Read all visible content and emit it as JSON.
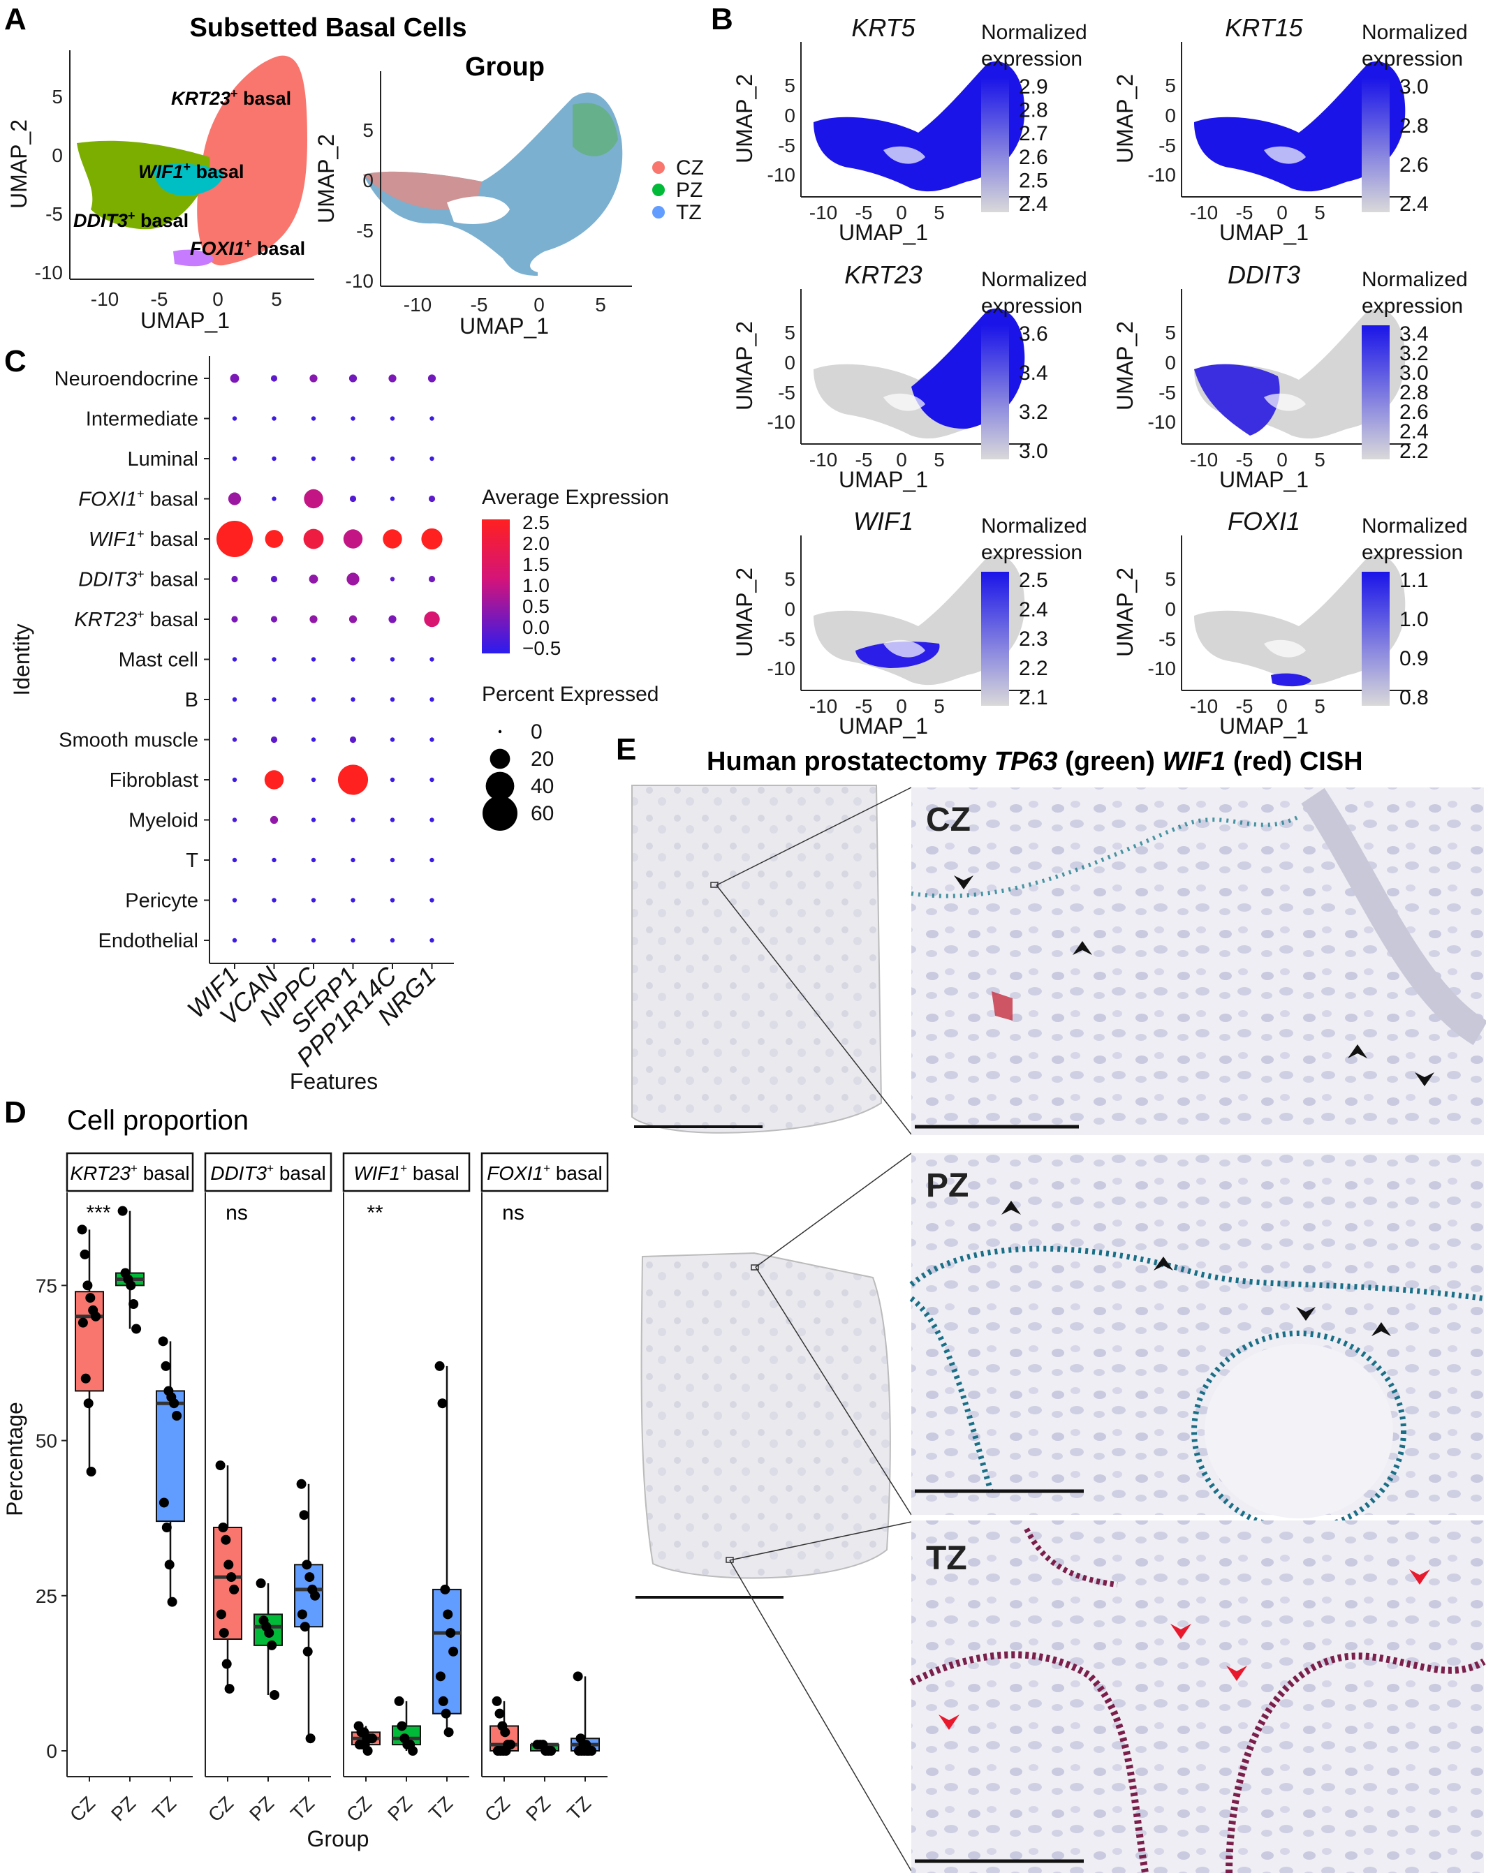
{
  "panels": {
    "A": {
      "letter": "A",
      "title": "Subsetted Basal Cells",
      "group_title": "Group",
      "xlabel": "UMAP_1",
      "ylabel": "UMAP_2",
      "xticks": [
        "-10",
        "-5",
        "0",
        "5"
      ],
      "yticks": [
        "5",
        "0",
        "-5",
        "-10"
      ],
      "cluster_labels": [
        {
          "gene": "KRT23",
          "sup": "+",
          "rest": " basal",
          "color": "#f8766d"
        },
        {
          "gene": "WIF1",
          "sup": "+",
          "rest": " basal",
          "color": "#00bfc4"
        },
        {
          "gene": "DDIT3",
          "sup": "+",
          "rest": " basal",
          "color": "#7cae00"
        },
        {
          "gene": "FOXI1",
          "sup": "+",
          "rest": " basal",
          "color": "#c77cff"
        }
      ],
      "group_legend": [
        {
          "label": "CZ",
          "color": "#f8766d"
        },
        {
          "label": "PZ",
          "color": "#00ba38"
        },
        {
          "label": "TZ",
          "color": "#619cff"
        }
      ]
    },
    "B": {
      "letter": "B",
      "legend_title_1": "Normalized",
      "legend_title_2": "expression",
      "xlabel": "UMAP_1",
      "ylabel": "UMAP_2",
      "xticks": [
        "-10",
        "-5",
        "0",
        "5"
      ],
      "yticks": [
        "5",
        "0",
        "-5",
        "-10"
      ],
      "plots": [
        {
          "gene": "KRT5",
          "ticks": [
            "2.9",
            "2.8",
            "2.7",
            "2.6",
            "2.5",
            "2.4"
          ]
        },
        {
          "gene": "KRT15",
          "ticks": [
            "3.0",
            "2.8",
            "2.6",
            "2.4"
          ]
        },
        {
          "gene": "KRT23",
          "ticks": [
            "3.6",
            "3.4",
            "3.2",
            "3.0"
          ]
        },
        {
          "gene": "DDIT3",
          "ticks": [
            "3.4",
            "3.2",
            "3.0",
            "2.8",
            "2.6",
            "2.4",
            "2.2"
          ]
        },
        {
          "gene": "WIF1",
          "ticks": [
            "2.5",
            "2.4",
            "2.3",
            "2.2",
            "2.1"
          ]
        },
        {
          "gene": "FOXI1",
          "ticks": [
            "1.1",
            "1.0",
            "0.9",
            "0.8"
          ]
        }
      ]
    },
    "C": {
      "letter": "C",
      "xlabel": "Features",
      "ylabel": "Identity",
      "identities": [
        {
          "plain": "Neuroendocrine"
        },
        {
          "plain": "Intermediate"
        },
        {
          "plain": "Luminal"
        },
        {
          "gene": "FOXI1",
          "sup": "+",
          "rest": " basal"
        },
        {
          "gene": "WIF1",
          "sup": "+",
          "rest": " basal"
        },
        {
          "gene": "DDIT3",
          "sup": "+",
          "rest": " basal"
        },
        {
          "gene": "KRT23",
          "sup": "+",
          "rest": " basal"
        },
        {
          "plain": "Mast cell"
        },
        {
          "plain": "B"
        },
        {
          "plain": "Smooth muscle"
        },
        {
          "plain": "Fibroblast"
        },
        {
          "plain": "Myeloid"
        },
        {
          "plain": "T"
        },
        {
          "plain": "Pericyte"
        },
        {
          "plain": "Endothelial"
        }
      ],
      "features": [
        "WIF1",
        "VCAN",
        "NPPC",
        "SFRP1",
        "PPP1R14C",
        "NRG1"
      ],
      "avg_legend_title": "Average Expression",
      "avg_ticks": [
        "2.5",
        "2.0",
        "1.5",
        "1.0",
        "0.5",
        "0.0",
        "−0.5"
      ],
      "pct_legend_title": "Percent Expressed",
      "pct_ticks": [
        "0",
        "20",
        "40",
        "60"
      ]
    },
    "D": {
      "letter": "D",
      "title": "Cell proportion",
      "xlabel": "Group",
      "ylabel": "Percentage",
      "yticks": [
        "0",
        "25",
        "50",
        "75"
      ],
      "facets": [
        {
          "gene": "KRT23",
          "sup": "+",
          "rest": " basal",
          "sig": "***"
        },
        {
          "gene": "DDIT3",
          "sup": "+",
          "rest": " basal",
          "sig": "ns"
        },
        {
          "gene": "WIF1",
          "sup": "+",
          "rest": " basal",
          "sig": "**"
        },
        {
          "gene": "FOXI1",
          "sup": "+",
          "rest": " basal",
          "sig": "ns"
        }
      ],
      "groups": [
        "CZ",
        "PZ",
        "TZ"
      ],
      "group_colors": [
        "#f8766d",
        "#00ba38",
        "#619cff"
      ]
    },
    "E": {
      "letter": "E",
      "title_a": "Human prostatectomy ",
      "title_g1": "TP63",
      "title_b": " (green) ",
      "title_g2": "WIF1",
      "title_c": " (red) CISH",
      "zones": [
        "CZ",
        "PZ",
        "TZ"
      ]
    }
  },
  "chart_data": [
    {
      "type": "dotplot",
      "panel": "C",
      "rows": [
        "Neuroendocrine",
        "Intermediate",
        "Luminal",
        "FOXI1+ basal",
        "WIF1+ basal",
        "DDIT3+ basal",
        "KRT23+ basal",
        "Mast cell",
        "B",
        "Smooth muscle",
        "Fibroblast",
        "Myeloid",
        "T",
        "Pericyte",
        "Endothelial"
      ],
      "columns": [
        "WIF1",
        "VCAN",
        "NPPC",
        "SFRP1",
        "PPP1R14C",
        "NRG1"
      ],
      "percent_expressed": [
        [
          4,
          2,
          3,
          3,
          3,
          3
        ],
        [
          1,
          1,
          1,
          1,
          1,
          1
        ],
        [
          1,
          1,
          1,
          1,
          1,
          1
        ],
        [
          8,
          1,
          18,
          2,
          1,
          2
        ],
        [
          65,
          16,
          20,
          18,
          18,
          22
        ],
        [
          2,
          2,
          4,
          8,
          1,
          2
        ],
        [
          2,
          2,
          3,
          3,
          3,
          12
        ],
        [
          1,
          1,
          1,
          1,
          1,
          1
        ],
        [
          1,
          1,
          1,
          1,
          1,
          1
        ],
        [
          1,
          2,
          1,
          2,
          1,
          1
        ],
        [
          1,
          18,
          1,
          45,
          1,
          1
        ],
        [
          1,
          3,
          1,
          1,
          1,
          1
        ],
        [
          1,
          1,
          1,
          1,
          1,
          1
        ],
        [
          1,
          1,
          1,
          1,
          1,
          1
        ],
        [
          1,
          1,
          1,
          1,
          1,
          1
        ]
      ],
      "average_expression": [
        [
          0.3,
          0.0,
          0.4,
          0.2,
          0.3,
          0.2
        ],
        [
          -0.3,
          -0.3,
          -0.3,
          -0.3,
          -0.3,
          -0.3
        ],
        [
          -0.3,
          -0.3,
          -0.3,
          -0.3,
          -0.3,
          -0.3
        ],
        [
          0.6,
          -0.3,
          1.0,
          -0.1,
          -0.3,
          0.0
        ],
        [
          2.5,
          2.5,
          2.0,
          1.0,
          2.5,
          2.5
        ],
        [
          0.2,
          0.0,
          0.5,
          0.6,
          0.0,
          0.2
        ],
        [
          0.3,
          0.3,
          0.5,
          0.5,
          0.3,
          1.3
        ],
        [
          -0.3,
          -0.3,
          -0.3,
          -0.3,
          -0.3,
          -0.3
        ],
        [
          -0.3,
          -0.3,
          -0.3,
          -0.3,
          -0.3,
          -0.3
        ],
        [
          -0.2,
          0.0,
          -0.3,
          0.0,
          -0.3,
          -0.3
        ],
        [
          -0.3,
          2.5,
          -0.3,
          2.5,
          -0.3,
          -0.3
        ],
        [
          -0.2,
          0.5,
          -0.3,
          -0.3,
          -0.3,
          -0.3
        ],
        [
          -0.3,
          -0.3,
          -0.3,
          -0.3,
          -0.3,
          -0.3
        ],
        [
          -0.3,
          -0.3,
          -0.3,
          -0.3,
          -0.3,
          -0.3
        ],
        [
          -0.3,
          -0.3,
          -0.3,
          -0.3,
          -0.3,
          -0.3
        ]
      ],
      "avg_range": [
        -0.5,
        2.5
      ],
      "pct_scale_max": 65
    },
    {
      "type": "box",
      "panel": "D",
      "ylim": [
        0,
        90
      ],
      "facets": [
        {
          "name": "KRT23+ basal",
          "boxes": [
            {
              "group": "CZ",
              "q1": 58,
              "median": 70,
              "q3": 74,
              "whisker_low": 45,
              "whisker_high": 84,
              "points": [
                84,
                80,
                75,
                73,
                71,
                70,
                69,
                60,
                56,
                45
              ]
            },
            {
              "group": "PZ",
              "q1": 75,
              "median": 76,
              "q3": 77,
              "whisker_low": 68,
              "whisker_high": 87,
              "points": [
                87,
                77,
                76,
                75,
                72,
                68
              ]
            },
            {
              "group": "TZ",
              "q1": 37,
              "median": 56,
              "q3": 58,
              "whisker_low": 24,
              "whisker_high": 66,
              "points": [
                66,
                62,
                58,
                57,
                56,
                54,
                40,
                36,
                30,
                24
              ]
            }
          ]
        },
        {
          "name": "DDIT3+ basal",
          "boxes": [
            {
              "group": "CZ",
              "q1": 18,
              "median": 28,
              "q3": 36,
              "whisker_low": 10,
              "whisker_high": 46,
              "points": [
                46,
                36,
                34,
                30,
                28,
                26,
                22,
                19,
                14,
                10
              ]
            },
            {
              "group": "PZ",
              "q1": 17,
              "median": 20,
              "q3": 22,
              "whisker_low": 9,
              "whisker_high": 27,
              "points": [
                27,
                21,
                20,
                19,
                17,
                9
              ]
            },
            {
              "group": "TZ",
              "q1": 20,
              "median": 26,
              "q3": 30,
              "whisker_low": 2,
              "whisker_high": 43,
              "points": [
                43,
                38,
                30,
                28,
                26,
                25,
                22,
                20,
                16,
                2
              ]
            }
          ]
        },
        {
          "name": "WIF1+ basal",
          "boxes": [
            {
              "group": "CZ",
              "q1": 1,
              "median": 2,
              "q3": 3,
              "whisker_low": 0,
              "whisker_high": 4,
              "points": [
                4,
                3,
                3,
                2,
                2,
                2,
                1,
                1,
                1,
                0
              ]
            },
            {
              "group": "PZ",
              "q1": 1,
              "median": 2,
              "q3": 4,
              "whisker_low": 0,
              "whisker_high": 8,
              "points": [
                8,
                4,
                2,
                1,
                1,
                0
              ]
            },
            {
              "group": "TZ",
              "q1": 6,
              "median": 19,
              "q3": 26,
              "whisker_low": 3,
              "whisker_high": 62,
              "points": [
                62,
                56,
                26,
                22,
                19,
                16,
                12,
                8,
                6,
                3
              ]
            }
          ]
        },
        {
          "name": "FOXI1+ basal",
          "boxes": [
            {
              "group": "CZ",
              "q1": 0,
              "median": 1,
              "q3": 4,
              "whisker_low": 0,
              "whisker_high": 8,
              "points": [
                8,
                6,
                4,
                3,
                1,
                1,
                0,
                0,
                0,
                0
              ]
            },
            {
              "group": "PZ",
              "q1": 0,
              "median": 1,
              "q3": 1,
              "whisker_low": 0,
              "whisker_high": 1,
              "points": [
                1,
                1,
                1,
                0,
                0,
                0
              ]
            },
            {
              "group": "TZ",
              "q1": 0,
              "median": 1,
              "q3": 2,
              "whisker_low": 0,
              "whisker_high": 12,
              "points": [
                12,
                2,
                1,
                1,
                0,
                0,
                0,
                0,
                0,
                0
              ]
            }
          ]
        }
      ]
    }
  ]
}
